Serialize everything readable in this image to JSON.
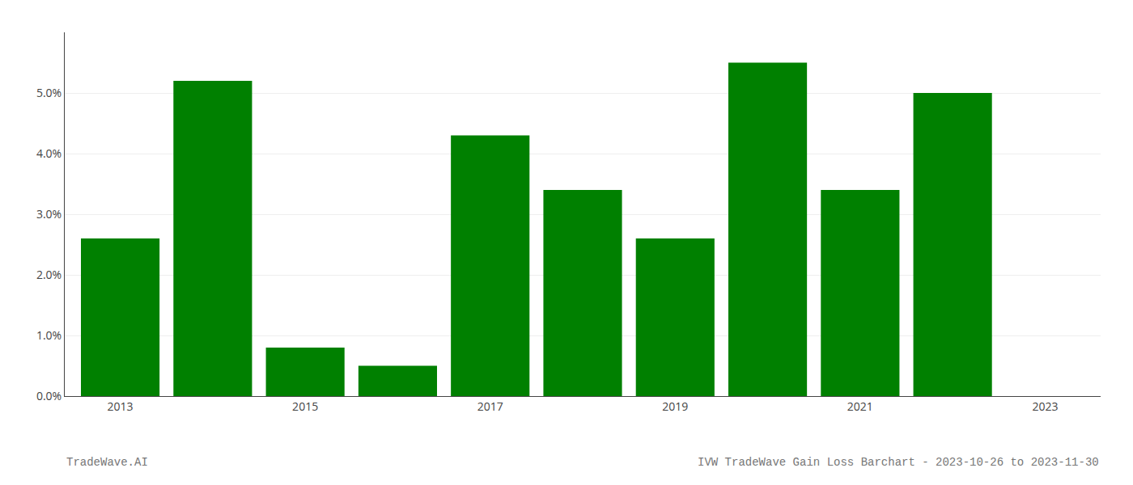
{
  "chart_data": {
    "type": "bar",
    "x": [
      2013,
      2014,
      2015,
      2016,
      2017,
      2018,
      2019,
      2020,
      2021,
      2022,
      2023
    ],
    "values": [
      0.026,
      0.052,
      0.008,
      0.005,
      0.043,
      0.034,
      0.026,
      0.055,
      0.034,
      0.05,
      0.0
    ],
    "color": "#008000",
    "xlim": [
      2012.4,
      2023.6
    ],
    "xticks": [
      2013,
      2015,
      2017,
      2019,
      2021,
      2023
    ],
    "ylim": [
      0.0,
      0.06
    ],
    "yticks": [
      {
        "value": 0.0,
        "label": "0.0%"
      },
      {
        "value": 0.01,
        "label": "1.0%"
      },
      {
        "value": 0.02,
        "label": "2.0%"
      },
      {
        "value": 0.03,
        "label": "3.0%"
      },
      {
        "value": 0.04,
        "label": "4.0%"
      },
      {
        "value": 0.05,
        "label": "5.0%"
      }
    ],
    "grid": true,
    "annotations": [
      "TradeWave.AI",
      "IVW TradeWave Gain Loss Barchart - 2023-10-26 to 2023-11-30"
    ]
  }
}
